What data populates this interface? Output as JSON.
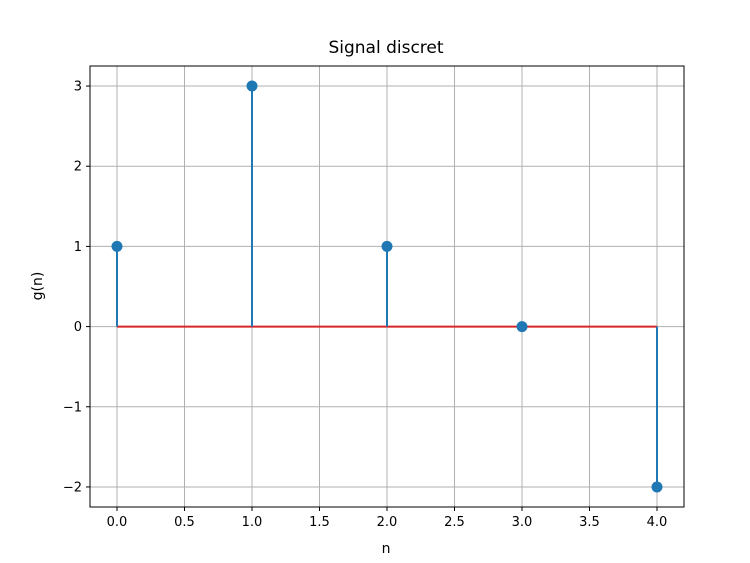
{
  "chart_data": {
    "type": "stem",
    "title": "Signal discret",
    "xlabel": "n",
    "ylabel": "g(n)",
    "x": [
      0,
      1,
      2,
      3,
      4
    ],
    "y": [
      1,
      3,
      1,
      0,
      -2
    ],
    "xlim": [
      -0.2,
      4.2
    ],
    "ylim": [
      -2.25,
      3.25
    ],
    "xticks": [
      0.0,
      0.5,
      1.0,
      1.5,
      2.0,
      2.5,
      3.0,
      3.5,
      4.0
    ],
    "xtick_labels": [
      "0.0",
      "0.5",
      "1.0",
      "1.5",
      "2.0",
      "2.5",
      "3.0",
      "3.5",
      "4.0"
    ],
    "yticks": [
      -2,
      -1,
      0,
      1,
      2,
      3
    ],
    "ytick_labels": [
      "−2",
      "−1",
      "0",
      "1",
      "2",
      "3"
    ],
    "grid": true,
    "colors": {
      "stem": "#1f77b4",
      "marker": "#1f77b4",
      "baseline": "#d62728",
      "grid": "#b0b0b0"
    }
  }
}
